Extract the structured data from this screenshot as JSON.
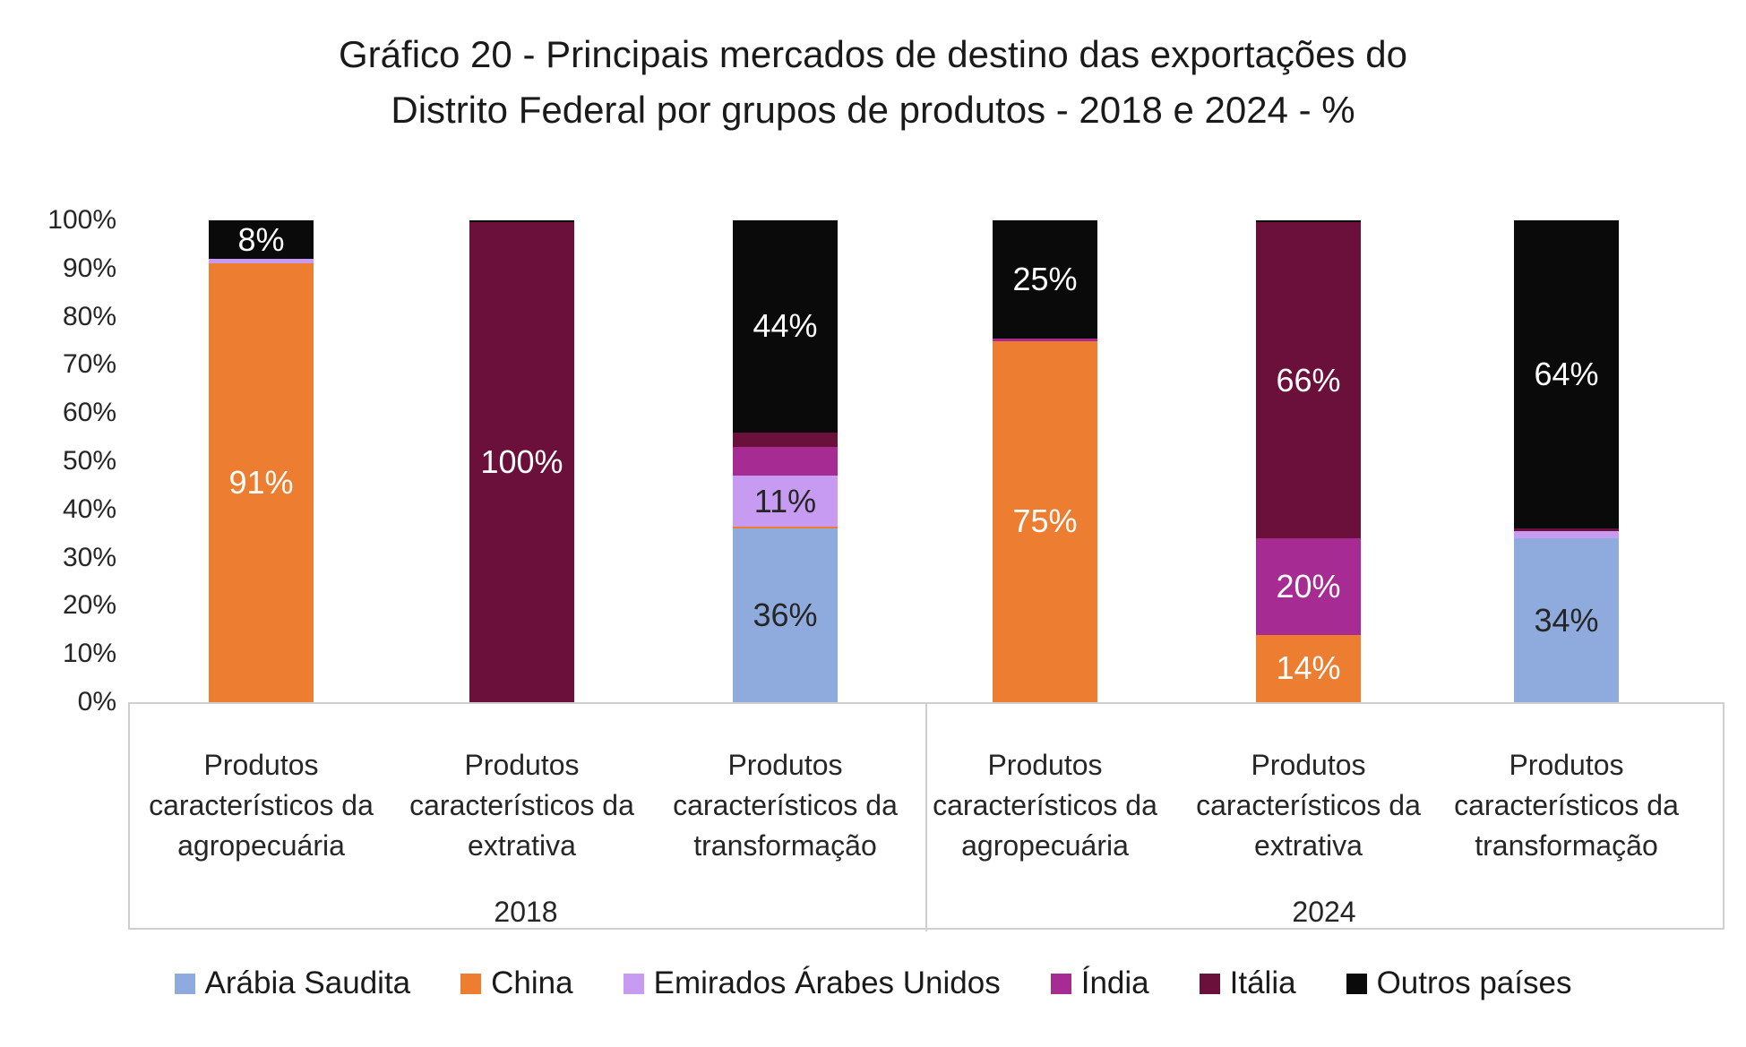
{
  "title": {
    "line1": "Gráfico 20 - Principais mercados de destino das exportações do",
    "line2": "Distrito Federal por grupos de produtos - 2018 e 2024 - %"
  },
  "chart_data": {
    "type": "bar",
    "subtype": "stacked-100-percent",
    "title": "Gráfico 20 - Principais mercados de destino das exportações do Distrito Federal por grupos de produtos - 2018 e 2024 - %",
    "xlabel": "",
    "ylabel": "",
    "grid": "off",
    "legend_position": "bottom",
    "y_axis": {
      "min": 0,
      "max": 100,
      "ticks": [
        "0%",
        "10%",
        "20%",
        "30%",
        "40%",
        "50%",
        "60%",
        "70%",
        "80%",
        "90%",
        "100%"
      ]
    },
    "colors": {
      "Arábia Saudita": "#8FAADC",
      "China": "#ED7D31",
      "Emirados Árabes Unidos": "#C79BF2",
      "Índia": "#A62C93",
      "Itália": "#6B0F3B",
      "Outros países": "#0A0A0A"
    },
    "label_colors": {
      "light": "#FFFFFF",
      "dark": "#262626"
    },
    "legend": [
      "Arábia Saudita",
      "China",
      "Emirados Árabes Unidos",
      "Índia",
      "Itália",
      "Outros países"
    ],
    "year_groups": [
      "2018",
      "2024"
    ],
    "groups": [
      {
        "year": "2018",
        "category_lines": [
          "Produtos",
          "característicos da",
          "agropecuária"
        ],
        "segments": [
          {
            "country": "China",
            "value": 91,
            "label": "91%",
            "label_color": "#FFFFFF"
          },
          {
            "country": "Emirados Árabes Unidos",
            "value": 1
          },
          {
            "country": "Outros países",
            "value": 8,
            "label": "8%",
            "label_color": "#FFFFFF"
          }
        ]
      },
      {
        "year": "2018",
        "category_lines": [
          "Produtos",
          "característicos da",
          "extrativa"
        ],
        "segments": [
          {
            "country": "Itália",
            "value": 99.6,
            "label": "100%",
            "label_color": "#FFFFFF"
          },
          {
            "country": "Outros países",
            "value": 0.4
          }
        ]
      },
      {
        "year": "2018",
        "category_lines": [
          "Produtos",
          "característicos da",
          "transformação"
        ],
        "segments": [
          {
            "country": "Arábia Saudita",
            "value": 36,
            "label": "36%",
            "label_color": "#262626"
          },
          {
            "country": "China",
            "value": 0.4
          },
          {
            "country": "Emirados Árabes Unidos",
            "value": 10.6,
            "label": "11%",
            "label_color": "#262626"
          },
          {
            "country": "Índia",
            "value": 6
          },
          {
            "country": "Itália",
            "value": 3
          },
          {
            "country": "Outros países",
            "value": 44,
            "label": "44%",
            "label_color": "#FFFFFF"
          }
        ]
      },
      {
        "year": "2024",
        "category_lines": [
          "Produtos",
          "característicos da",
          "agropecuária"
        ],
        "segments": [
          {
            "country": "China",
            "value": 75,
            "label": "75%",
            "label_color": "#FFFFFF"
          },
          {
            "country": "Índia",
            "value": 0.5
          },
          {
            "country": "Outros países",
            "value": 24.5,
            "label": "25%",
            "label_color": "#FFFFFF"
          }
        ]
      },
      {
        "year": "2024",
        "category_lines": [
          "Produtos",
          "característicos da",
          "extrativa"
        ],
        "segments": [
          {
            "country": "China",
            "value": 14,
            "label": "14%",
            "label_color": "#FFFFFF"
          },
          {
            "country": "Índia",
            "value": 20,
            "label": "20%",
            "label_color": "#FFFFFF"
          },
          {
            "country": "Itália",
            "value": 65.6,
            "label": "66%",
            "label_color": "#FFFFFF"
          },
          {
            "country": "Outros países",
            "value": 0.4
          }
        ]
      },
      {
        "year": "2024",
        "category_lines": [
          "Produtos",
          "característicos da",
          "transformação"
        ],
        "segments": [
          {
            "country": "Arábia Saudita",
            "value": 34,
            "label": "34%",
            "label_color": "#262626"
          },
          {
            "country": "Emirados Árabes Unidos",
            "value": 1.5
          },
          {
            "country": "Itália",
            "value": 0.5
          },
          {
            "country": "Outros países",
            "value": 64,
            "label": "64%",
            "label_color": "#FFFFFF"
          }
        ]
      }
    ]
  }
}
